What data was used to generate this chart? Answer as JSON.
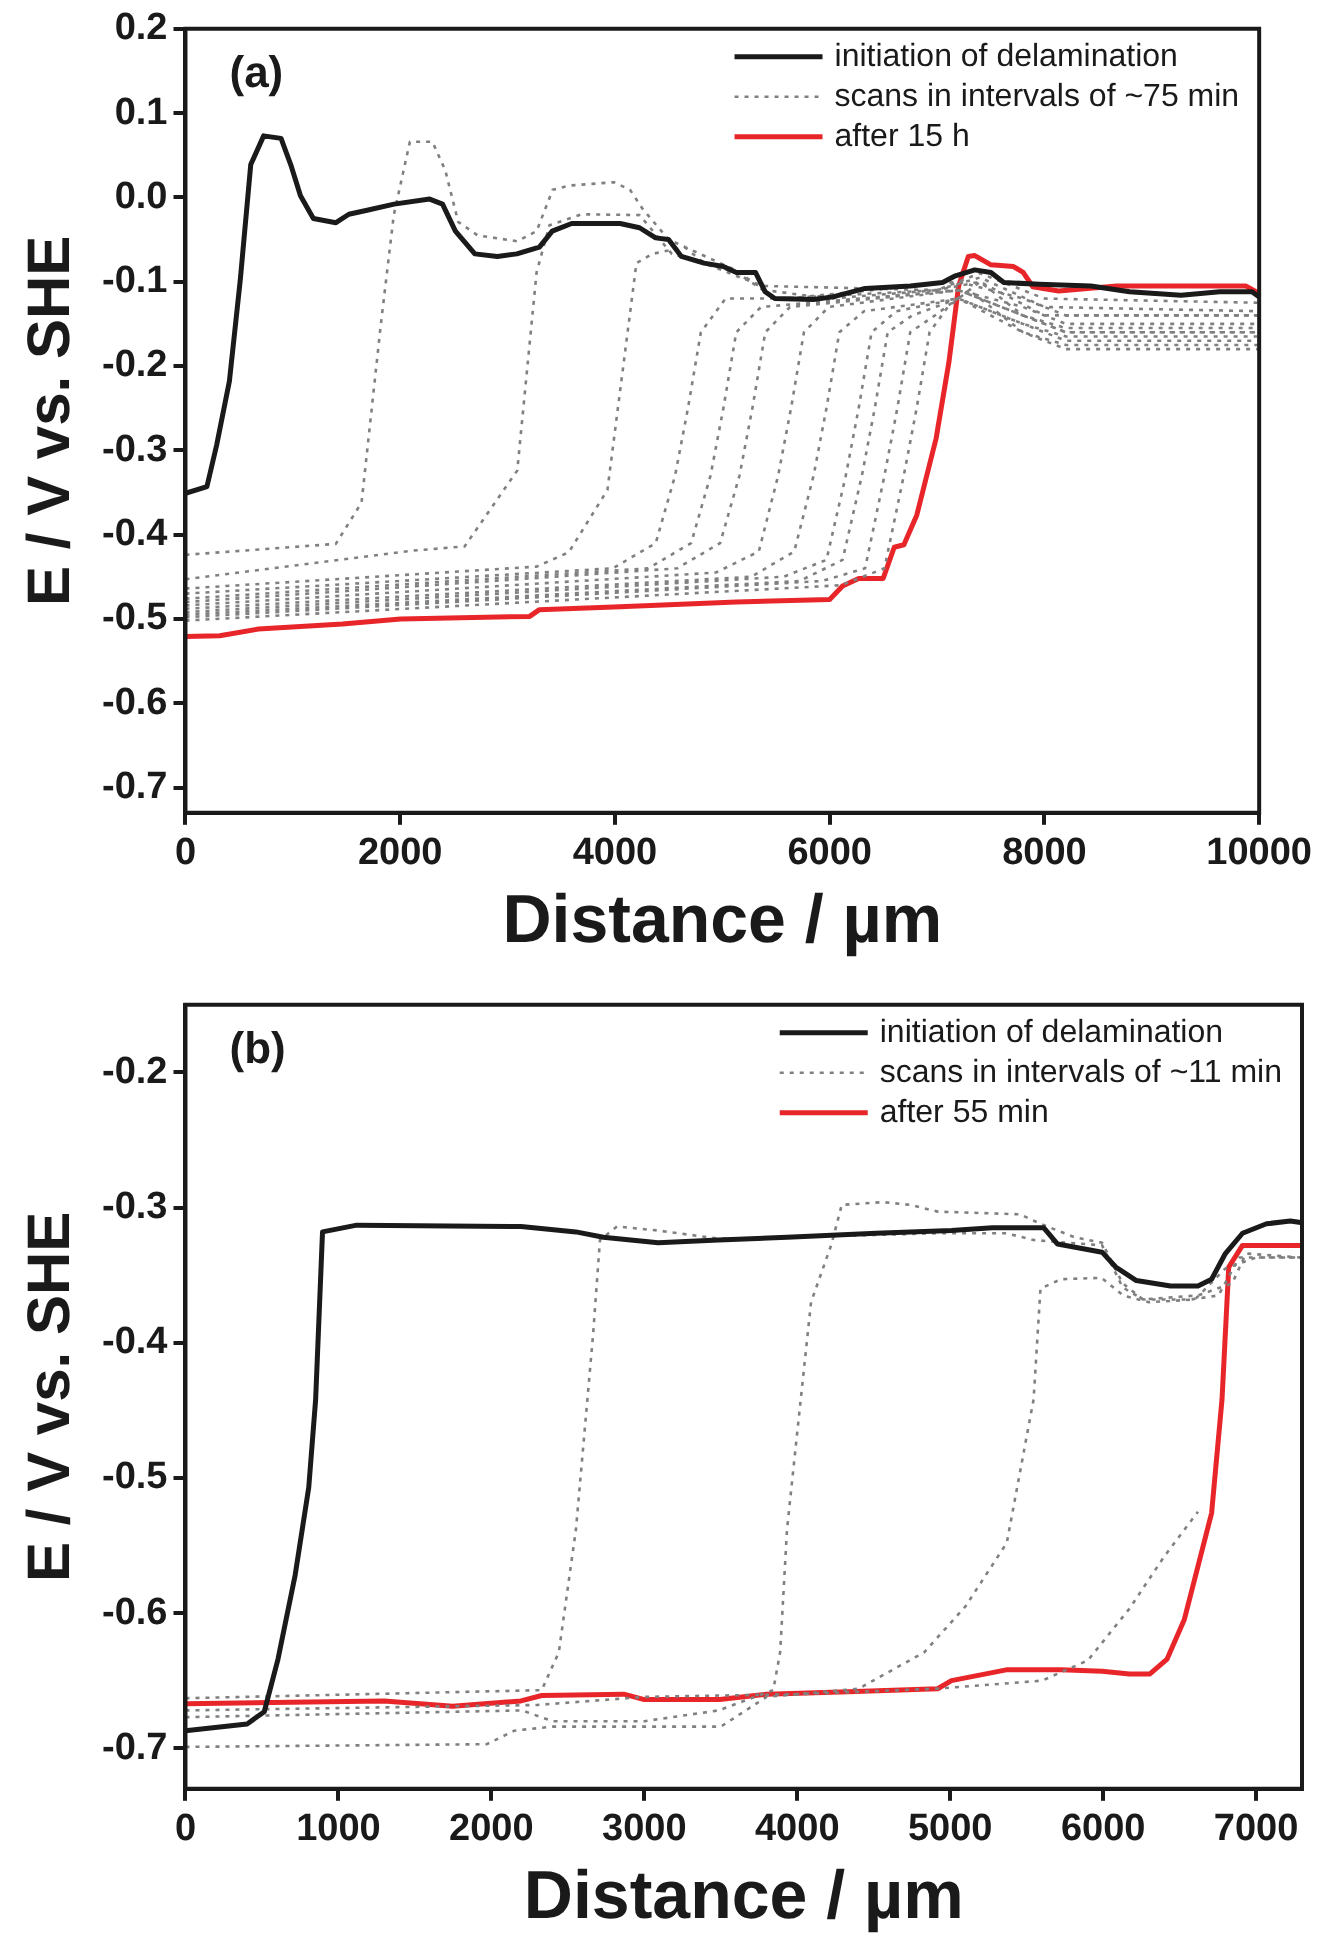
{
  "chart_data": [
    {
      "type": "line",
      "xlabel": "Distance / µm",
      "ylabel": "E / V vs. SHE",
      "annotations": [
        "(a)"
      ],
      "xlim": [
        0,
        10000
      ],
      "ylim": [
        -0.73,
        0.2
      ],
      "xticks": [
        0,
        2000,
        4000,
        6000,
        8000,
        10000
      ],
      "yticks": [
        -0.7,
        -0.6,
        -0.5,
        -0.4,
        -0.3,
        -0.2,
        -0.1,
        {
          "value": 0,
          "label": "0.0"
        },
        0.1,
        0.2
      ],
      "grid": false,
      "legend": "top right",
      "marker": "none",
      "series": [
        {
          "name": "initiation of delamination",
          "color": "#1a1a1a",
          "line_style": "solid",
          "x": [
            0,
            200,
            290,
            409,
            511,
            608,
            728,
            890,
            980,
            1071,
            1191,
            1401,
            1522,
            1702,
            1943,
            2274,
            2394,
            2514,
            2695,
            2905,
            3086,
            3296,
            3416,
            3597,
            4048,
            4229,
            4379,
            4499,
            4619,
            4830,
            5010,
            5131,
            5309,
            5399,
            5489,
            5850,
            6030,
            6330,
            6751,
            7051,
            7171,
            7351,
            7502,
            7622,
            7952,
            8432,
            8793,
            9273,
            9633,
            9934,
            10000
          ],
          "values": [
            -0.351,
            -0.343,
            -0.294,
            -0.218,
            -0.097,
            0.039,
            0.073,
            0.07,
            0.039,
            0.002,
            -0.025,
            -0.03,
            -0.02,
            -0.015,
            -0.008,
            -0.002,
            -0.008,
            -0.04,
            -0.067,
            -0.07,
            -0.067,
            -0.059,
            -0.04,
            -0.031,
            -0.031,
            -0.036,
            -0.048,
            -0.05,
            -0.07,
            -0.078,
            -0.082,
            -0.089,
            -0.089,
            -0.112,
            -0.12,
            -0.121,
            -0.118,
            -0.108,
            -0.105,
            -0.101,
            -0.093,
            -0.086,
            -0.089,
            -0.101,
            -0.103,
            -0.105,
            -0.112,
            -0.116,
            -0.112,
            -0.112,
            -0.118
          ]
        },
        {
          "name": "scans in intervals of ~75 min",
          "color": "#808080",
          "line_style": "dotted",
          "x": [
            0,
            1400,
            1640,
            1820,
            1940,
            2090,
            2300,
            2420,
            2540,
            2720,
            3090,
            3270,
            3420,
            3570,
            3990,
            4140,
            4260,
            4500,
            5100,
            5400,
            6000,
            7000,
            7400,
            8000,
            10000
          ],
          "values": [
            -0.424,
            -0.411,
            -0.362,
            -0.15,
            -0.021,
            0.066,
            0.066,
            0.032,
            -0.029,
            -0.045,
            -0.052,
            -0.04,
            0.009,
            0.014,
            0.018,
            0.009,
            -0.014,
            -0.05,
            -0.085,
            -0.11,
            -0.12,
            -0.11,
            -0.09,
            -0.12,
            -0.125
          ]
        },
        {
          "color": "#808080",
          "line_style": "dotted",
          "x": [
            0,
            2120,
            2600,
            3090,
            3270,
            3390,
            3690,
            4230,
            4530,
            5130,
            5500,
            7000,
            7400,
            8000,
            10000
          ],
          "values": [
            -0.453,
            -0.419,
            -0.414,
            -0.324,
            -0.089,
            -0.033,
            -0.02,
            -0.021,
            -0.067,
            -0.089,
            -0.12,
            -0.11,
            -0.095,
            -0.13,
            -0.135
          ]
        },
        {
          "color": "#808080",
          "line_style": "dotted",
          "x": [
            0,
            3270,
            3570,
            3930,
            4200,
            4350,
            4650,
            4830,
            5370,
            7000,
            7400,
            8000,
            10000
          ],
          "values": [
            -0.464,
            -0.438,
            -0.421,
            -0.347,
            -0.078,
            -0.067,
            -0.059,
            -0.078,
            -0.105,
            -0.11,
            -0.1,
            -0.14,
            -0.14
          ]
        },
        {
          "color": "#808080",
          "line_style": "dotted",
          "x": [
            0,
            3980,
            4380,
            4560,
            4680,
            4800,
            5030,
            5600,
            7200,
            7800,
            8200,
            10000
          ],
          "values": [
            -0.47,
            -0.44,
            -0.41,
            -0.33,
            -0.25,
            -0.16,
            -0.12,
            -0.12,
            -0.1,
            -0.12,
            -0.14,
            -0.14
          ]
        },
        {
          "color": "#808080",
          "line_style": "dotted",
          "x": [
            0,
            4310,
            4710,
            4890,
            5010,
            5130,
            5360,
            7200,
            7800,
            8200,
            10000
          ],
          "values": [
            -0.476,
            -0.44,
            -0.41,
            -0.33,
            -0.25,
            -0.16,
            -0.13,
            -0.11,
            -0.13,
            -0.15,
            -0.15
          ]
        },
        {
          "color": "#808080",
          "line_style": "dotted",
          "x": [
            0,
            4580,
            4980,
            5160,
            5280,
            5400,
            5630,
            7200,
            7800,
            8200,
            10000
          ],
          "values": [
            -0.48,
            -0.44,
            -0.41,
            -0.33,
            -0.25,
            -0.16,
            -0.13,
            -0.11,
            -0.14,
            -0.155,
            -0.155
          ]
        },
        {
          "color": "#808080",
          "line_style": "dotted",
          "x": [
            0,
            4940,
            5340,
            5520,
            5640,
            5760,
            5990,
            7200,
            7800,
            8200,
            10000
          ],
          "values": [
            -0.484,
            -0.445,
            -0.42,
            -0.33,
            -0.25,
            -0.16,
            -0.13,
            -0.11,
            -0.14,
            -0.16,
            -0.16
          ]
        },
        {
          "color": "#808080",
          "line_style": "dotted",
          "x": [
            0,
            5270,
            5670,
            5850,
            5970,
            6090,
            6320,
            7200,
            7800,
            8200,
            10000
          ],
          "values": [
            -0.488,
            -0.45,
            -0.42,
            -0.33,
            -0.25,
            -0.16,
            -0.135,
            -0.12,
            -0.15,
            -0.165,
            -0.165
          ]
        },
        {
          "color": "#808080",
          "line_style": "dotted",
          "x": [
            0,
            5570,
            5970,
            6150,
            6270,
            6390,
            6620,
            7200,
            7800,
            8200,
            10000
          ],
          "values": [
            -0.492,
            -0.45,
            -0.43,
            -0.33,
            -0.25,
            -0.16,
            -0.135,
            -0.12,
            -0.15,
            -0.17,
            -0.17
          ]
        },
        {
          "color": "#808080",
          "line_style": "dotted",
          "x": [
            0,
            5720,
            6120,
            6300,
            6420,
            6540,
            6770,
            7200,
            7800,
            8200,
            10000
          ],
          "values": [
            -0.495,
            -0.455,
            -0.43,
            -0.33,
            -0.25,
            -0.16,
            -0.14,
            -0.12,
            -0.16,
            -0.175,
            -0.175
          ]
        },
        {
          "color": "#808080",
          "line_style": "dotted",
          "x": [
            0,
            5930,
            6330,
            6510,
            6630,
            6750,
            6980,
            7300,
            7800,
            8200,
            10000
          ],
          "values": [
            -0.498,
            -0.455,
            -0.44,
            -0.33,
            -0.25,
            -0.16,
            -0.14,
            -0.11,
            -0.16,
            -0.18,
            -0.18
          ]
        },
        {
          "color": "#808080",
          "line_style": "dotted",
          "x": [
            0,
            6110,
            6510,
            6690,
            6810,
            6930,
            7100,
            7400,
            7800,
            8200,
            10000
          ],
          "values": [
            -0.502,
            -0.46,
            -0.44,
            -0.33,
            -0.25,
            -0.16,
            -0.13,
            -0.1,
            -0.14,
            -0.16,
            -0.16
          ]
        },
        {
          "name": "after 15 h",
          "color": "#e8262a",
          "line_style": "solid",
          "x": [
            0,
            319,
            680,
            1462,
            2003,
            3206,
            3296,
            3988,
            5131,
            6000,
            6120,
            6270,
            6498,
            6601,
            6691,
            6811,
            6991,
            7111,
            7201,
            7291,
            7351,
            7502,
            7712,
            7802,
            7892,
            8132,
            8673,
            9874,
            10000
          ],
          "values": [
            -0.521,
            -0.52,
            -0.512,
            -0.506,
            -0.5,
            -0.497,
            -0.489,
            -0.486,
            -0.48,
            -0.477,
            -0.461,
            -0.452,
            -0.452,
            -0.415,
            -0.412,
            -0.377,
            -0.286,
            -0.195,
            -0.105,
            -0.07,
            -0.069,
            -0.08,
            -0.082,
            -0.089,
            -0.106,
            -0.111,
            -0.105,
            -0.105,
            -0.114
          ]
        }
      ]
    },
    {
      "type": "line",
      "xlabel": "Distance / µm",
      "ylabel": "E / V vs. SHE",
      "annotations": [
        "(b)"
      ],
      "xlim": [
        0,
        7300
      ],
      "ylim": [
        -0.73,
        -0.15
      ],
      "xticks": [
        0,
        1000,
        2000,
        3000,
        4000,
        5000,
        6000,
        7000
      ],
      "yticks": [
        -0.7,
        -0.6,
        -0.5,
        -0.4,
        -0.3,
        -0.2
      ],
      "grid": false,
      "legend": "top right",
      "marker": "none",
      "series": [
        {
          "name": "initiation of delamination",
          "color": "#1a1a1a",
          "line_style": "solid",
          "x": [
            0,
            403,
            515,
            605,
            717,
            806,
            851,
            896,
            1120,
            2194,
            2553,
            2732,
            3090,
            3485,
            3933,
            4515,
            5008,
            5276,
            5612,
            5702,
            5993,
            6082,
            6217,
            6441,
            6620,
            6709,
            6799,
            6911,
            7068,
            7224,
            7291
          ],
          "values": [
            -0.687,
            -0.682,
            -0.673,
            -0.634,
            -0.572,
            -0.507,
            -0.442,
            -0.318,
            -0.313,
            -0.314,
            -0.318,
            -0.322,
            -0.326,
            -0.324,
            -0.322,
            -0.319,
            -0.317,
            -0.315,
            -0.315,
            -0.327,
            -0.333,
            -0.344,
            -0.354,
            -0.358,
            -0.358,
            -0.353,
            -0.334,
            -0.319,
            -0.312,
            -0.31,
            -0.311
          ]
        },
        {
          "name": "scans in intervals of ~11 min",
          "color": "#808080",
          "line_style": "dotted",
          "x": [
            0,
            2329,
            2441,
            2553,
            2665,
            2710,
            2821,
            3090,
            3485,
            3933,
            4919,
            5366,
            5545,
            5993,
            6127,
            6261,
            6575,
            6754,
            6889,
            7291
          ],
          "values": [
            -0.663,
            -0.657,
            -0.629,
            -0.538,
            -0.394,
            -0.324,
            -0.314,
            -0.317,
            -0.323,
            -0.322,
            -0.319,
            -0.319,
            -0.324,
            -0.328,
            -0.359,
            -0.368,
            -0.368,
            -0.365,
            -0.337,
            -0.337
          ]
        },
        {
          "color": "#808080",
          "line_style": "dotted",
          "x": [
            0,
            2200,
            2400,
            3000,
            3485,
            3843,
            3888,
            3933,
            4000,
            4090,
            4224,
            4291,
            4560,
            4739,
            4918,
            5456,
            5590,
            5814,
            5993,
            6127,
            6261,
            6620,
            6844,
            6933,
            7291
          ],
          "values": [
            -0.677,
            -0.672,
            -0.68,
            -0.68,
            -0.672,
            -0.657,
            -0.629,
            -0.538,
            -0.466,
            -0.37,
            -0.327,
            -0.298,
            -0.296,
            -0.298,
            -0.303,
            -0.305,
            -0.312,
            -0.322,
            -0.326,
            -0.356,
            -0.368,
            -0.365,
            -0.356,
            -0.334,
            -0.337
          ]
        },
        {
          "color": "#808080",
          "line_style": "dotted",
          "x": [
            0,
            1970,
            2150,
            2400,
            3500,
            3800,
            4400,
            4830,
            5100,
            5370,
            5545,
            5590,
            5724,
            5990,
            6130,
            6300,
            6600,
            6800,
            7000,
            7291
          ],
          "values": [
            -0.699,
            -0.697,
            -0.687,
            -0.684,
            -0.684,
            -0.662,
            -0.656,
            -0.629,
            -0.595,
            -0.548,
            -0.442,
            -0.36,
            -0.353,
            -0.352,
            -0.365,
            -0.37,
            -0.368,
            -0.345,
            -0.337,
            -0.337
          ]
        },
        {
          "color": "#808080",
          "line_style": "dotted",
          "x": [
            0,
            2300,
            3000,
            4000,
            4900,
            5600,
            5900,
            6170,
            6400,
            6620
          ],
          "values": [
            -0.672,
            -0.668,
            -0.662,
            -0.66,
            -0.656,
            -0.65,
            -0.635,
            -0.597,
            -0.558,
            -0.525
          ]
        },
        {
          "name": "after 55 min",
          "color": "#e8262a",
          "line_style": "solid",
          "x": [
            0,
            1299,
            1747,
            2194,
            2329,
            2866,
            3000,
            3493,
            3800,
            4381,
            4918,
            5008,
            5366,
            5724,
            5993,
            6172,
            6306,
            6418,
            6530,
            6709,
            6777,
            6821,
            6911,
            7291
          ],
          "values": [
            -0.667,
            -0.665,
            -0.669,
            -0.665,
            -0.661,
            -0.66,
            -0.664,
            -0.664,
            -0.66,
            -0.658,
            -0.656,
            -0.65,
            -0.642,
            -0.642,
            -0.643,
            -0.645,
            -0.645,
            -0.634,
            -0.605,
            -0.526,
            -0.442,
            -0.344,
            -0.328,
            -0.328
          ]
        }
      ]
    }
  ]
}
